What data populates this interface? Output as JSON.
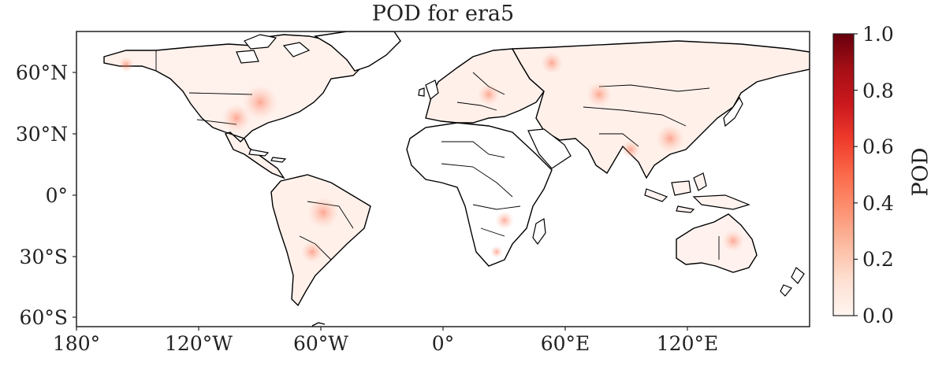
{
  "title": "POD for era5",
  "lat_ticks": [
    "60°N",
    "30°N",
    "0°",
    "30°S",
    "60°S"
  ],
  "lon_ticks": [
    "180°",
    "120°W",
    "60°W",
    "0°",
    "60°E",
    "120°E"
  ],
  "colorbar": {
    "label": "POD",
    "ticks": [
      "0.0",
      "0.2",
      "0.4",
      "0.6",
      "0.8",
      "1.0"
    ],
    "colormap": "Reds",
    "range": [
      0.0,
      1.0
    ],
    "colors": [
      "#fff5f0",
      "#fee0d2",
      "#fcbba1",
      "#fc9272",
      "#fb6a4a",
      "#ef3b2c",
      "#cb181d",
      "#a50f15",
      "#67000d"
    ]
  },
  "map": {
    "projection": "PlateCarree",
    "lon_range": [
      -180,
      180
    ],
    "lat_range": [
      -65,
      80
    ],
    "land_fill": "#ffffff",
    "coastline_color": "#000000",
    "dominant_pod_range": [
      0.0,
      0.3
    ]
  }
}
